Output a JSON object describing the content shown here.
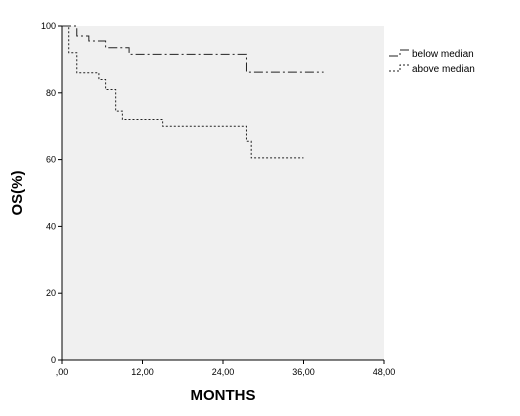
{
  "chart_data": {
    "type": "line",
    "subtype": "kaplan-meier step curve",
    "title": "",
    "xlabel": "MONTHS",
    "ylabel": "OS(%)",
    "xlim": [
      0,
      48
    ],
    "ylim": [
      0,
      100
    ],
    "x_ticks": [
      ",00",
      "12,00",
      "24,00",
      "36,00",
      "48,00"
    ],
    "y_ticks": [
      "0",
      "20",
      "40",
      "60",
      "80",
      "100"
    ],
    "grid": false,
    "legend_position": "top-right",
    "plot_background": "#f0f0f0",
    "series": [
      {
        "name": "below median",
        "line_style": "dash-dot",
        "color": "#222222",
        "x": [
          0,
          2.2,
          4.0,
          6.5,
          10.0,
          27.5,
          39.0
        ],
        "y": [
          100,
          97,
          95.5,
          93.5,
          91.5,
          86.2,
          86.2
        ]
      },
      {
        "name": "above median",
        "line_style": "dotted",
        "color": "#222222",
        "x": [
          0,
          1.0,
          2.2,
          5.5,
          6.5,
          8.0,
          9.0,
          15.0,
          27.5,
          28.2,
          36.0
        ],
        "y": [
          100,
          92,
          86,
          84,
          81,
          74.5,
          72,
          70,
          65.5,
          60.5,
          60.5
        ]
      }
    ]
  }
}
